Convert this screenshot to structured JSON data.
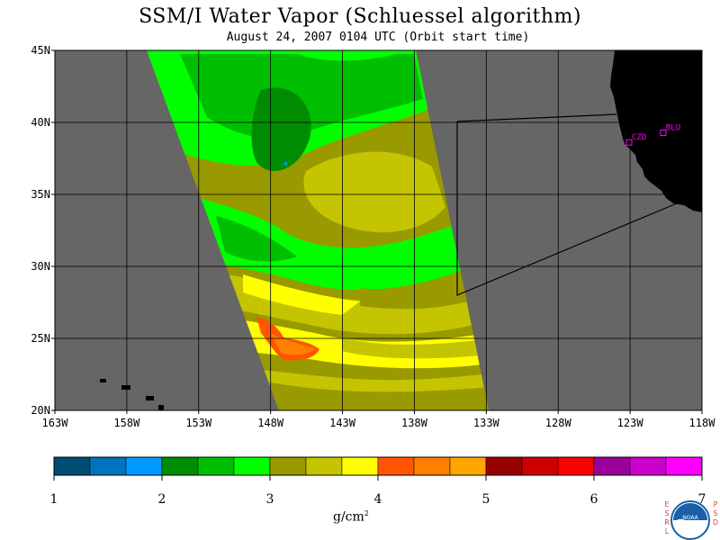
{
  "title": "SSM/I Water Vapor (Schluessel algorithm)",
  "subtitle": "August 24, 2007  0104 UTC  (Orbit start time)",
  "map": {
    "lon_range": [
      -163,
      -118
    ],
    "lat_range": [
      20,
      45
    ],
    "lat_labels": [
      "45N",
      "40N",
      "35N",
      "30N",
      "25N",
      "20N"
    ],
    "lon_labels": [
      "163W",
      "158W",
      "153W",
      "148W",
      "143W",
      "138W",
      "133W",
      "128W",
      "123W",
      "118W"
    ],
    "stations": [
      {
        "name": "CZD",
        "lon": -123.07,
        "lat": 38.61
      },
      {
        "name": "BLU",
        "lon": -120.7,
        "lat": 39.28
      }
    ],
    "colors": {
      "background": "#666666",
      "land": "#000000",
      "station": "#ff00ff",
      "grid": "#000000"
    }
  },
  "legend": {
    "colors": [
      "#004d73",
      "#0073bf",
      "#0099ff",
      "#008c00",
      "#00bf00",
      "#00ff00",
      "#999900",
      "#c4c400",
      "#ffff00",
      "#ff5500",
      "#ff7f00",
      "#ffa600",
      "#990000",
      "#cc0000",
      "#ff0000",
      "#990099",
      "#cc00cc",
      "#ff00ff"
    ],
    "ticks": [
      "1",
      "2",
      "3",
      "4",
      "5",
      "6",
      "7"
    ],
    "unit": "g/cm",
    "unit_sup": "2"
  },
  "logo": {
    "esrl": "E S R L",
    "psd": "P S D",
    "noaa": "NOAA"
  }
}
